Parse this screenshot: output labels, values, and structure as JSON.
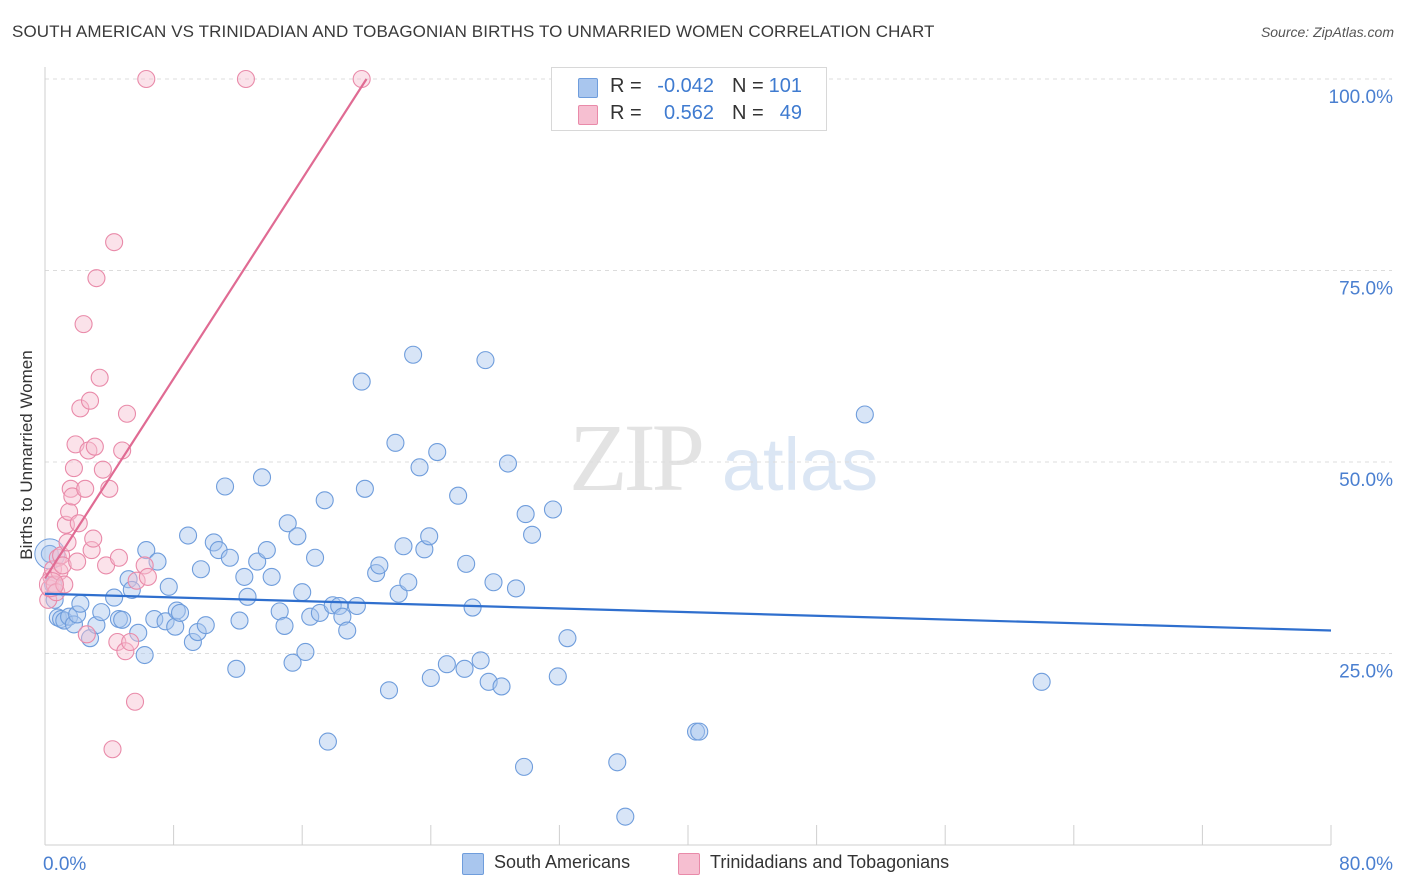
{
  "header": {
    "title": "SOUTH AMERICAN VS TRINIDADIAN AND TOBAGONIAN BIRTHS TO UNMARRIED WOMEN CORRELATION CHART",
    "source": "Source: ZipAtlas.com"
  },
  "watermark": {
    "zip": "ZIP",
    "atlas": "atlas"
  },
  "legend_top": {
    "rows": [
      {
        "r_label": "R =",
        "r_value": "-0.042",
        "n_label": "N =",
        "n_value": "101",
        "color": "#a9c6ee",
        "border": "#6f9ddc"
      },
      {
        "r_label": "R =",
        "r_value": "0.562",
        "n_label": "N =",
        "n_value": "49",
        "color": "#f6bfd1",
        "border": "#e98aa9"
      }
    ]
  },
  "legend_bottom": {
    "items": [
      {
        "label": "South Americans",
        "color": "#a9c6ee",
        "border": "#6f9ddc"
      },
      {
        "label": "Trinidadians and Tobagonians",
        "color": "#f6bfd1",
        "border": "#e98aa9"
      }
    ]
  },
  "chart_data": {
    "type": "scatter",
    "title": "SOUTH AMERICAN VS TRINIDADIAN AND TOBAGONIAN BIRTHS TO UNMARRIED WOMEN CORRELATION CHART",
    "xlabel": "",
    "ylabel": "Births to Unmarried Women",
    "xlim": [
      0,
      80
    ],
    "ylim": [
      0,
      100
    ],
    "x_tick_labels": [
      "0.0%",
      "80.0%"
    ],
    "y_tick_labels": [
      "100.0%",
      "75.0%",
      "50.0%",
      "25.0%"
    ],
    "y_ticks": [
      100,
      75,
      50,
      25
    ],
    "grid": true,
    "colors": {
      "south_americans": "#6f9ddc",
      "trinidadians": "#e98aa9",
      "blue_line": "#2f6fce",
      "pink_line": "#e06b93",
      "tick_text": "#4a7fd0"
    },
    "series": [
      {
        "name": "South Americans",
        "r": -0.042,
        "n": 101,
        "trend": {
          "x": [
            0,
            80
          ],
          "y": [
            32.8,
            28.0
          ]
        },
        "points": [
          [
            0.3,
            38
          ],
          [
            0.5,
            34
          ],
          [
            0.6,
            32
          ],
          [
            0.8,
            29.7
          ],
          [
            1.0,
            29.5
          ],
          [
            1.2,
            29.3
          ],
          [
            1.5,
            29.8
          ],
          [
            1.8,
            28.8
          ],
          [
            2.0,
            30.1
          ],
          [
            2.2,
            31.5
          ],
          [
            2.8,
            27.0
          ],
          [
            3.2,
            28.7
          ],
          [
            3.5,
            30.4
          ],
          [
            4.3,
            32.3
          ],
          [
            4.6,
            29.5
          ],
          [
            4.8,
            29.4
          ],
          [
            5.2,
            34.7
          ],
          [
            5.4,
            33.3
          ],
          [
            5.8,
            27.7
          ],
          [
            6.2,
            24.8
          ],
          [
            6.3,
            38.5
          ],
          [
            6.8,
            29.5
          ],
          [
            7.0,
            37.0
          ],
          [
            7.5,
            29.2
          ],
          [
            7.7,
            33.7
          ],
          [
            8.1,
            28.5
          ],
          [
            8.2,
            30.6
          ],
          [
            8.4,
            30.3
          ],
          [
            8.9,
            40.4
          ],
          [
            9.2,
            26.5
          ],
          [
            9.5,
            27.8
          ],
          [
            9.7,
            36.0
          ],
          [
            10.0,
            28.7
          ],
          [
            10.5,
            39.5
          ],
          [
            10.8,
            38.5
          ],
          [
            11.2,
            46.8
          ],
          [
            11.5,
            37.5
          ],
          [
            11.9,
            23.0
          ],
          [
            12.1,
            29.3
          ],
          [
            12.4,
            35.0
          ],
          [
            12.6,
            32.4
          ],
          [
            13.2,
            37.0
          ],
          [
            13.5,
            48.0
          ],
          [
            13.8,
            38.5
          ],
          [
            14.1,
            35.0
          ],
          [
            14.6,
            30.5
          ],
          [
            14.9,
            28.6
          ],
          [
            15.1,
            42.0
          ],
          [
            15.4,
            23.8
          ],
          [
            15.7,
            40.3
          ],
          [
            16.0,
            33.0
          ],
          [
            16.2,
            25.2
          ],
          [
            16.5,
            29.8
          ],
          [
            16.8,
            37.5
          ],
          [
            17.1,
            30.3
          ],
          [
            17.4,
            45.0
          ],
          [
            17.6,
            13.5
          ],
          [
            17.9,
            31.3
          ],
          [
            18.3,
            31.2
          ],
          [
            18.5,
            29.8
          ],
          [
            18.8,
            28.0
          ],
          [
            19.4,
            31.2
          ],
          [
            19.7,
            60.5
          ],
          [
            19.9,
            46.5
          ],
          [
            20.6,
            35.5
          ],
          [
            20.8,
            36.5
          ],
          [
            21.4,
            20.2
          ],
          [
            21.8,
            52.5
          ],
          [
            22.0,
            32.8
          ],
          [
            22.3,
            39.0
          ],
          [
            22.6,
            34.3
          ],
          [
            22.9,
            64.0
          ],
          [
            23.3,
            49.3
          ],
          [
            23.6,
            38.6
          ],
          [
            23.9,
            40.3
          ],
          [
            24.0,
            21.8
          ],
          [
            24.4,
            51.3
          ],
          [
            25.0,
            23.6
          ],
          [
            25.7,
            45.6
          ],
          [
            26.2,
            36.7
          ],
          [
            26.1,
            23.0
          ],
          [
            26.6,
            31.0
          ],
          [
            27.1,
            24.1
          ],
          [
            27.4,
            63.3
          ],
          [
            27.6,
            21.3
          ],
          [
            27.9,
            34.3
          ],
          [
            28.4,
            20.7
          ],
          [
            28.8,
            49.8
          ],
          [
            29.3,
            33.5
          ],
          [
            29.8,
            10.2
          ],
          [
            29.9,
            43.2
          ],
          [
            30.3,
            40.5
          ],
          [
            31.6,
            43.8
          ],
          [
            31.9,
            22.0
          ],
          [
            32.5,
            27.0
          ],
          [
            35.6,
            10.8
          ],
          [
            36.1,
            3.7
          ],
          [
            40.5,
            14.8
          ],
          [
            40.7,
            14.8
          ],
          [
            51.0,
            56.2
          ],
          [
            62.0,
            21.3
          ]
        ]
      },
      {
        "name": "Trinidadians and Tobagonians",
        "r": 0.562,
        "n": 49,
        "trend": {
          "x": [
            0,
            20.0
          ],
          "y": [
            34.8,
            100
          ]
        },
        "points": [
          [
            0.2,
            32
          ],
          [
            0.3,
            33.5
          ],
          [
            0.4,
            35
          ],
          [
            0.5,
            36
          ],
          [
            0.6,
            34
          ],
          [
            0.7,
            33
          ],
          [
            0.8,
            37.5
          ],
          [
            0.9,
            35.7
          ],
          [
            1.0,
            37.8
          ],
          [
            1.1,
            36.5
          ],
          [
            1.2,
            34
          ],
          [
            1.3,
            41.8
          ],
          [
            1.4,
            39.5
          ],
          [
            1.5,
            43.5
          ],
          [
            1.6,
            46.5
          ],
          [
            1.7,
            45.5
          ],
          [
            1.8,
            49.2
          ],
          [
            1.9,
            52.3
          ],
          [
            2.0,
            37
          ],
          [
            2.1,
            42
          ],
          [
            2.2,
            57
          ],
          [
            2.4,
            68
          ],
          [
            2.5,
            46.5
          ],
          [
            2.6,
            27.5
          ],
          [
            2.7,
            51.5
          ],
          [
            2.8,
            58
          ],
          [
            2.9,
            38.5
          ],
          [
            3.0,
            40
          ],
          [
            3.1,
            52
          ],
          [
            3.2,
            74
          ],
          [
            3.4,
            61
          ],
          [
            3.6,
            49
          ],
          [
            3.8,
            36.5
          ],
          [
            4.0,
            46.5
          ],
          [
            4.2,
            12.5
          ],
          [
            4.3,
            78.7
          ],
          [
            4.5,
            26.5
          ],
          [
            4.6,
            37.5
          ],
          [
            4.8,
            51.5
          ],
          [
            5.0,
            25.3
          ],
          [
            5.1,
            56.3
          ],
          [
            5.3,
            26.5
          ],
          [
            5.6,
            18.7
          ],
          [
            5.7,
            34.5
          ],
          [
            6.2,
            36.5
          ],
          [
            6.3,
            100
          ],
          [
            6.4,
            35
          ],
          [
            12.5,
            100
          ],
          [
            19.7,
            100
          ]
        ]
      }
    ]
  }
}
